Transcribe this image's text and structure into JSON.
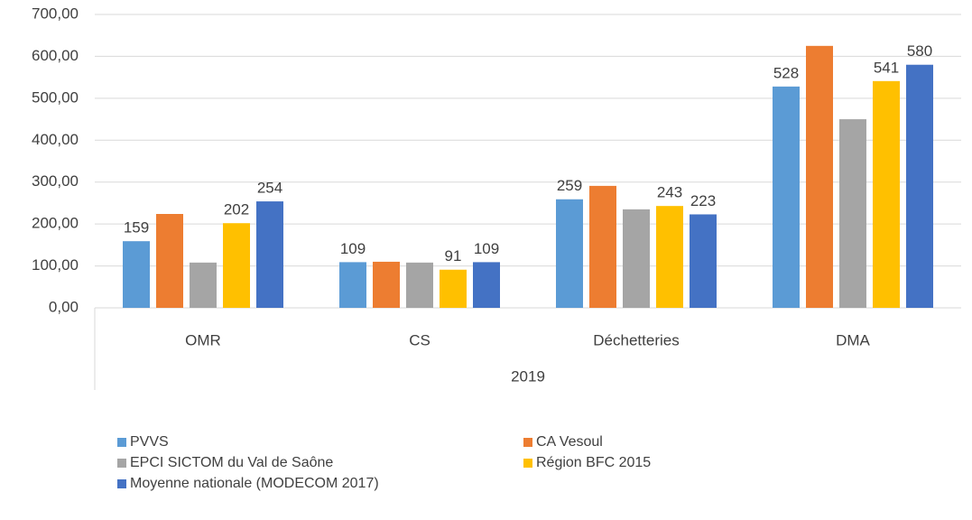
{
  "chart_data": {
    "type": "bar",
    "categories": [
      "OMR",
      "CS",
      "Déchetteries",
      "DMA"
    ],
    "group_label": "2019",
    "series": [
      {
        "name": "PVVS",
        "color": "#5b9bd5",
        "values": [
          159,
          109,
          259,
          528
        ],
        "data_labels": true
      },
      {
        "name": "CA Vesoul",
        "color": "#ed7d31",
        "values": [
          224,
          110,
          291,
          625
        ],
        "data_labels": false
      },
      {
        "name": "EPCI SICTOM du Val de Saône",
        "color": "#a5a5a5",
        "values": [
          108,
          108,
          235,
          450
        ],
        "data_labels": false
      },
      {
        "name": "Région BFC 2015",
        "color": "#ffc000",
        "values": [
          202,
          91,
          243,
          541
        ],
        "data_labels": true
      },
      {
        "name": "Moyenne nationale (MODECOM 2017)",
        "color": "#4472c4",
        "values": [
          254,
          109,
          223,
          580
        ],
        "data_labels": true
      }
    ],
    "ylim": [
      0,
      700
    ],
    "yticks": [
      {
        "value": 0,
        "label": "0,00"
      },
      {
        "value": 100,
        "label": "100,00"
      },
      {
        "value": 200,
        "label": "200,00"
      },
      {
        "value": 300,
        "label": "300,00"
      },
      {
        "value": 400,
        "label": "400,00"
      },
      {
        "value": 500,
        "label": "500,00"
      },
      {
        "value": 600,
        "label": "600,00"
      },
      {
        "value": 700,
        "label": "700,00"
      }
    ],
    "grid": true,
    "legend": "bottom"
  }
}
